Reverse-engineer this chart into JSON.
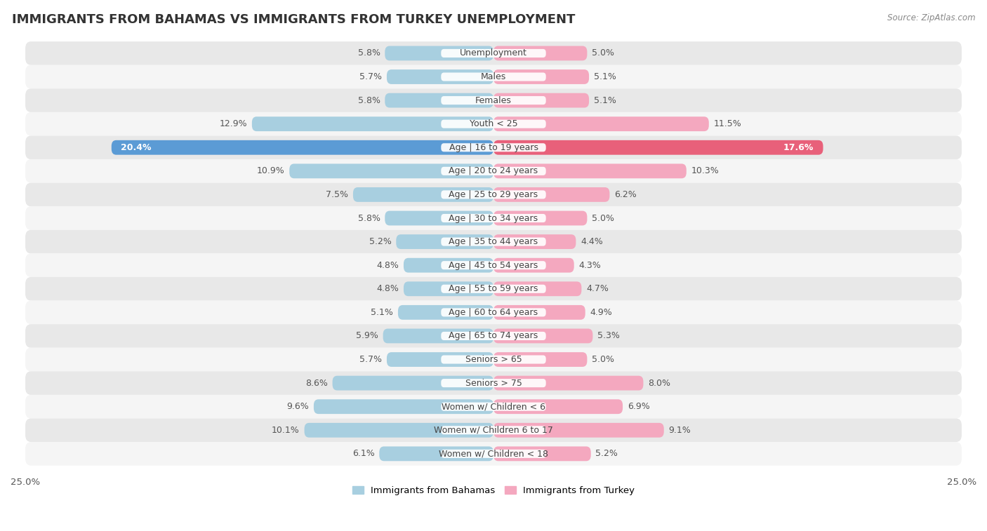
{
  "title": "IMMIGRANTS FROM BAHAMAS VS IMMIGRANTS FROM TURKEY UNEMPLOYMENT",
  "source": "Source: ZipAtlas.com",
  "categories": [
    "Unemployment",
    "Males",
    "Females",
    "Youth < 25",
    "Age | 16 to 19 years",
    "Age | 20 to 24 years",
    "Age | 25 to 29 years",
    "Age | 30 to 34 years",
    "Age | 35 to 44 years",
    "Age | 45 to 54 years",
    "Age | 55 to 59 years",
    "Age | 60 to 64 years",
    "Age | 65 to 74 years",
    "Seniors > 65",
    "Seniors > 75",
    "Women w/ Children < 6",
    "Women w/ Children 6 to 17",
    "Women w/ Children < 18"
  ],
  "bahamas": [
    5.8,
    5.7,
    5.8,
    12.9,
    20.4,
    10.9,
    7.5,
    5.8,
    5.2,
    4.8,
    4.8,
    5.1,
    5.9,
    5.7,
    8.6,
    9.6,
    10.1,
    6.1
  ],
  "turkey": [
    5.0,
    5.1,
    5.1,
    11.5,
    17.6,
    10.3,
    6.2,
    5.0,
    4.4,
    4.3,
    4.7,
    4.9,
    5.3,
    5.0,
    8.0,
    6.9,
    9.1,
    5.2
  ],
  "bahamas_color": "#a8cfe0",
  "turkey_color": "#f4a8bf",
  "bahamas_highlight_color": "#5b9bd5",
  "turkey_highlight_color": "#e8607a",
  "axis_max": 25.0,
  "fig_bg": "#ffffff",
  "row_bg_even": "#e8e8e8",
  "row_bg_odd": "#f5f5f5",
  "legend_bahamas": "Immigrants from Bahamas",
  "legend_turkey": "Immigrants from Turkey",
  "label_fontsize": 9,
  "value_fontsize": 9,
  "title_fontsize": 13
}
